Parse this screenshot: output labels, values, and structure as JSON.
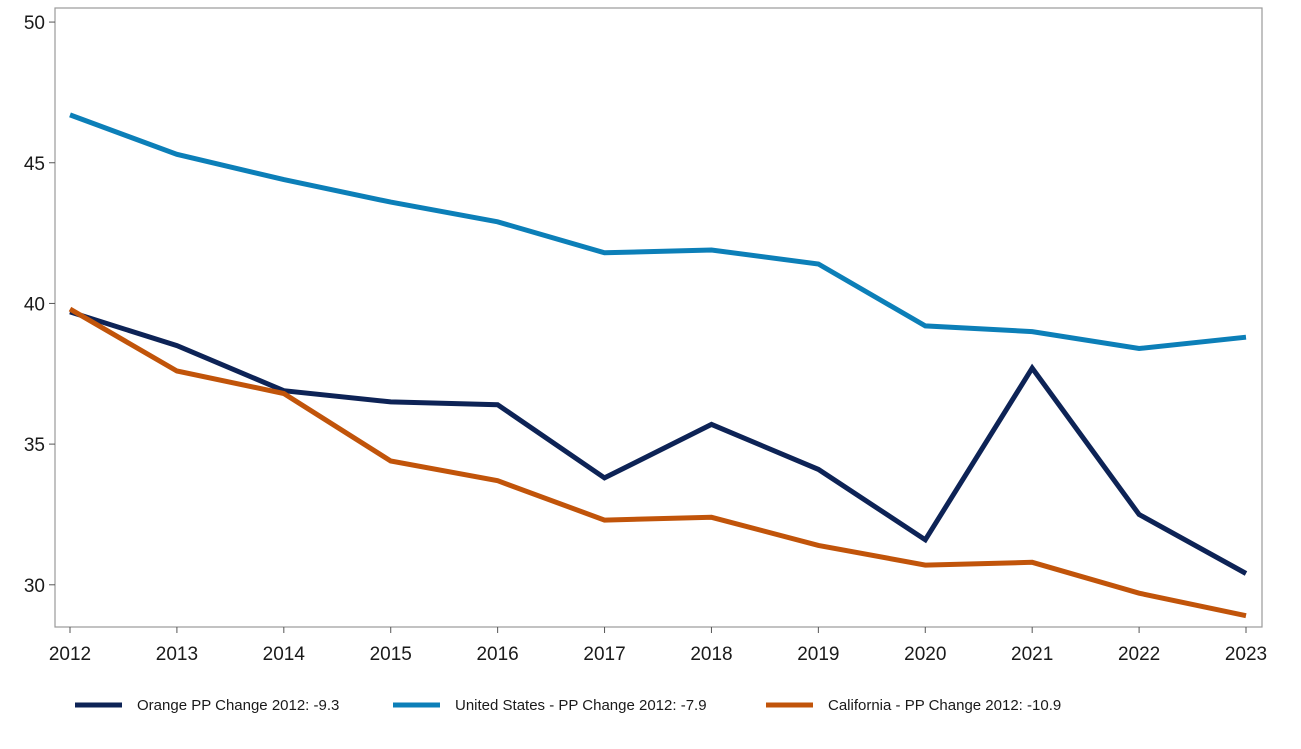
{
  "chart_data": {
    "type": "line",
    "title": "",
    "xlabel": "",
    "ylabel": "",
    "x": [
      2012,
      2013,
      2014,
      2015,
      2016,
      2017,
      2018,
      2019,
      2020,
      2021,
      2022,
      2023
    ],
    "ylim": [
      28.5,
      50.5
    ],
    "yticks": [
      30,
      35,
      40,
      45,
      50
    ],
    "grid": false,
    "legend_position": "bottom",
    "series": [
      {
        "name": "Orange PP Change 2012: -9.3",
        "color": "#0d2356",
        "values": [
          39.7,
          38.5,
          36.9,
          36.5,
          36.4,
          33.8,
          35.7,
          34.1,
          31.6,
          37.7,
          32.5,
          30.4
        ]
      },
      {
        "name": "United States - PP Change 2012: -7.9",
        "color": "#0c7fb8",
        "values": [
          46.7,
          45.3,
          44.4,
          43.6,
          42.9,
          41.8,
          41.9,
          41.4,
          39.2,
          39.0,
          38.4,
          38.8
        ]
      },
      {
        "name": "California - PP Change 2012: -10.9",
        "color": "#c1540a",
        "values": [
          39.8,
          37.6,
          36.8,
          34.4,
          33.7,
          32.3,
          32.4,
          31.4,
          30.7,
          30.8,
          29.7,
          28.9
        ]
      }
    ]
  }
}
